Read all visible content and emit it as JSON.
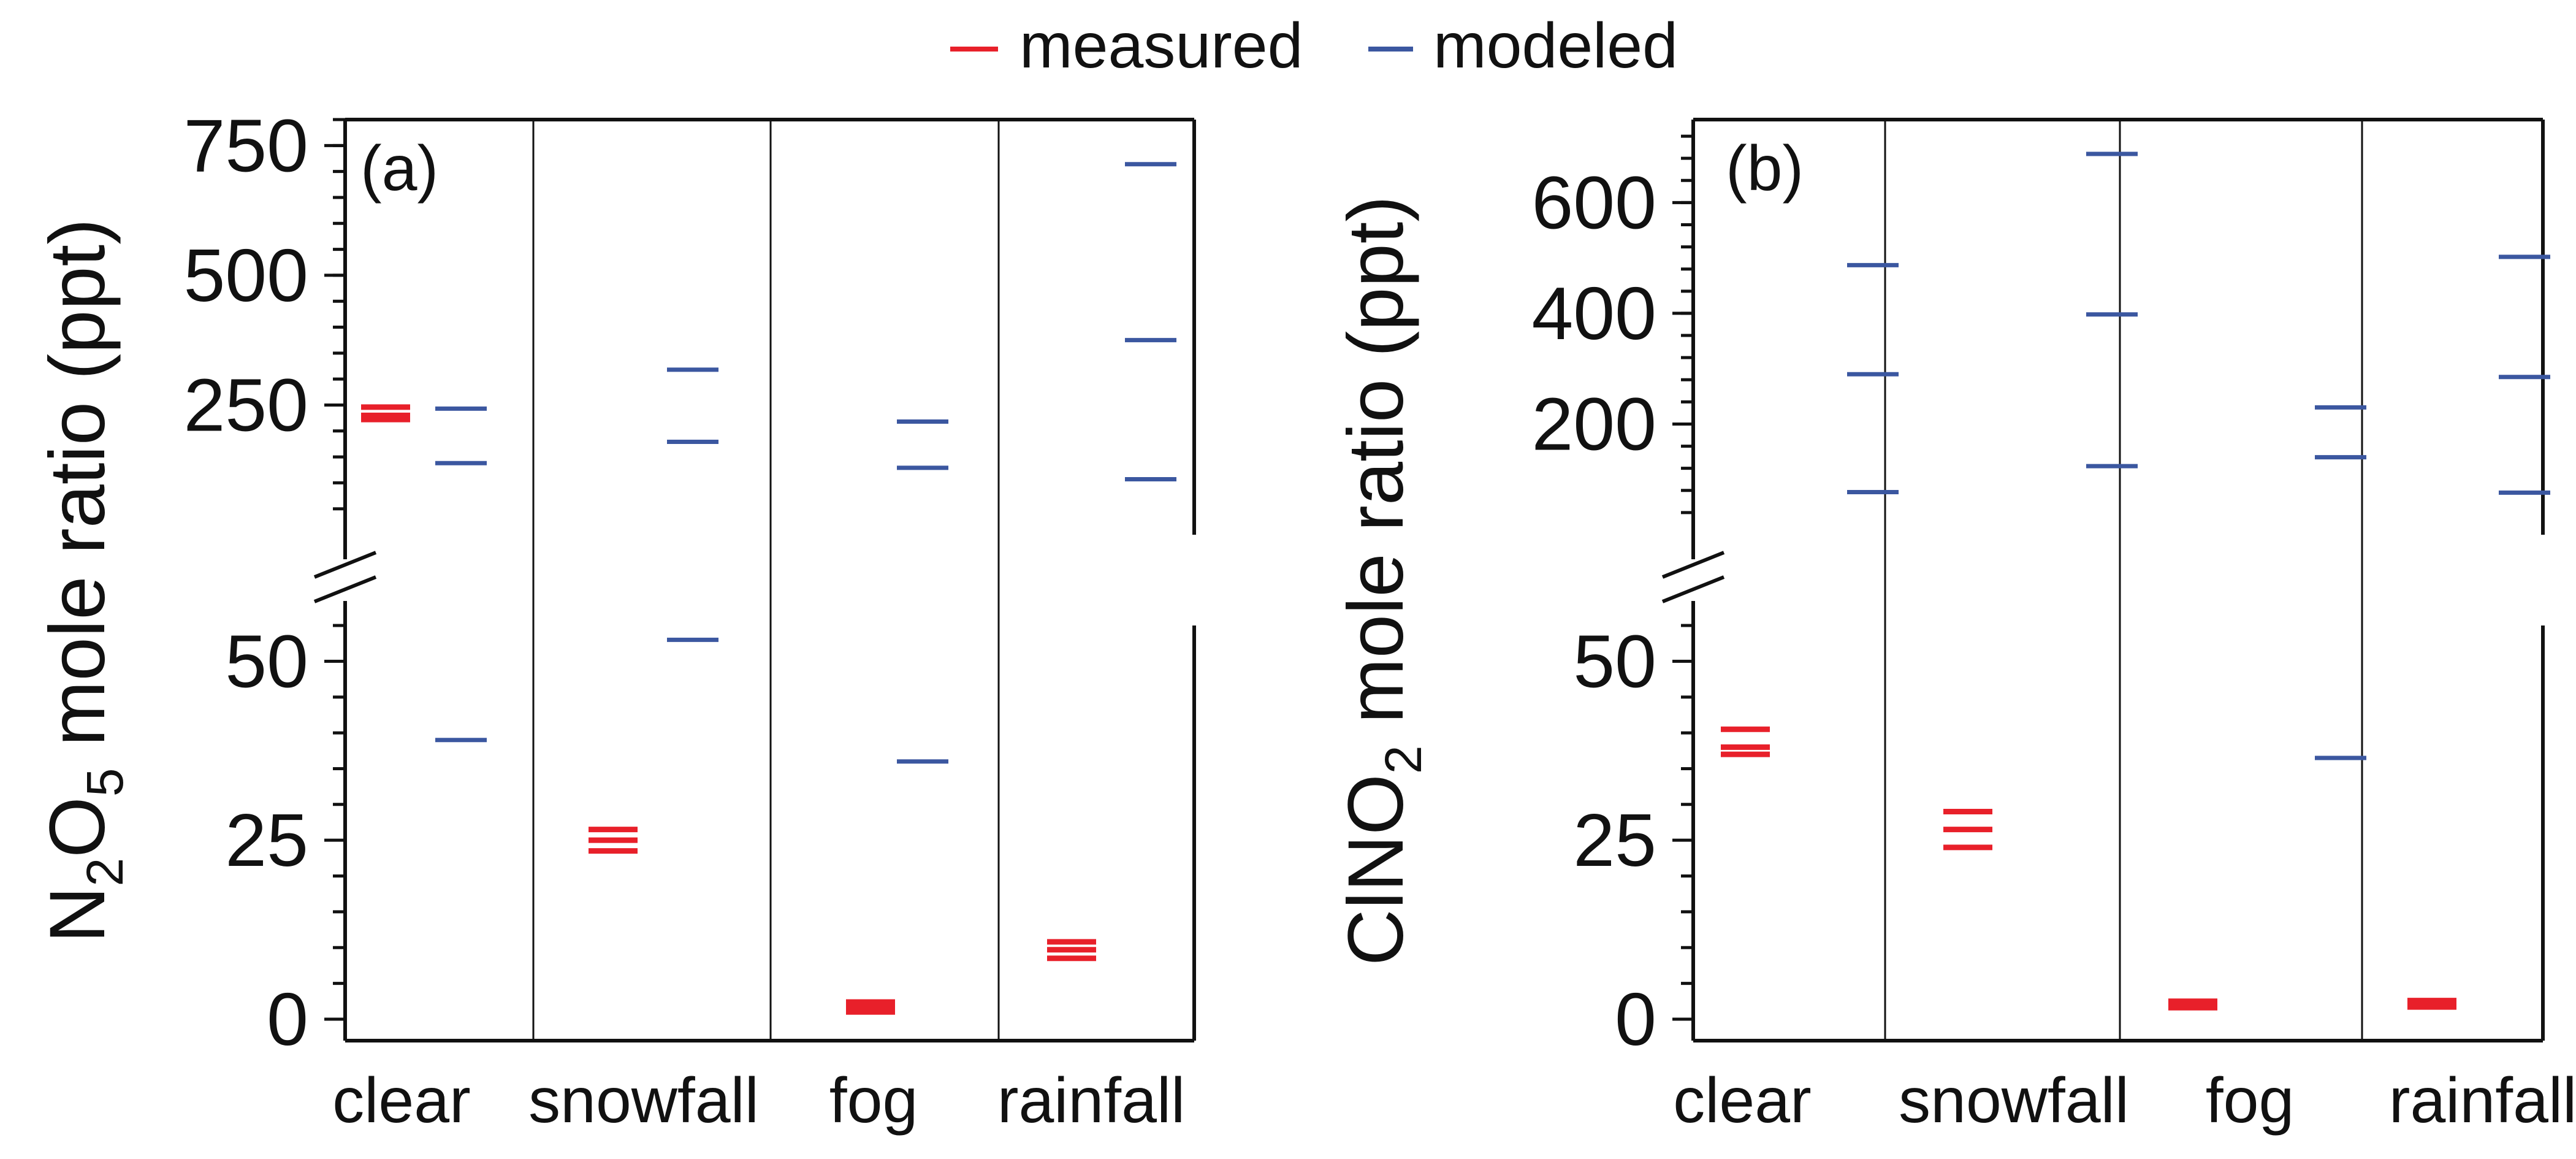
{
  "legend": {
    "items": [
      {
        "label": "measured",
        "color": "#e8202a"
      },
      {
        "label": "modeled",
        "color": "#3b57a0"
      }
    ],
    "placement": "top-center"
  },
  "chart_data": [
    {
      "panel_label": "(a)",
      "type": "scatter",
      "marker": "horizontal-dash",
      "ylabel_parts": [
        "N",
        "2",
        "O",
        "5",
        " mole ratio (ppt)"
      ],
      "categories": [
        "clear",
        "snowfall",
        "fog",
        "rainfall"
      ],
      "y_axis": {
        "broken": true,
        "lower": {
          "range": [
            -3,
            55
          ],
          "ticks": [
            "0",
            "25",
            "50"
          ],
          "minor_step": 5
        },
        "upper": {
          "range": [
            0,
            800
          ],
          "ticks": [
            "250",
            "500",
            "750"
          ],
          "minor_step": 50
        }
      },
      "series": [
        {
          "name": "measured",
          "color": "#e8202a",
          "values": [
            [
              246,
              230,
              222
            ],
            [
              26.5,
              25,
              23.5
            ],
            [
              2.4,
              1.7,
              1.0
            ],
            [
              10.8,
              9.7,
              8.5
            ]
          ]
        },
        {
          "name": "modeled",
          "color": "#3b57a0",
          "values": [
            [
              243,
              138,
              39
            ],
            [
              318,
              179,
              53
            ],
            [
              218,
              129,
              36
            ],
            [
              714,
              375,
              107
            ]
          ]
        }
      ]
    },
    {
      "panel_label": "(b)",
      "type": "scatter",
      "marker": "horizontal-dash",
      "ylabel_parts": [
        "ClNO",
        "2",
        " mole ratio (ppt)"
      ],
      "categories": [
        "clear",
        "snowfall",
        "fog",
        "rainfall"
      ],
      "y_axis": {
        "broken": true,
        "lower": {
          "range": [
            -3,
            55
          ],
          "ticks": [
            "0",
            "25",
            "50"
          ],
          "minor_step": 5
        },
        "upper": {
          "range": [
            0,
            750
          ],
          "ticks": [
            "200",
            "400",
            "600"
          ],
          "minor_step": 40
        }
      },
      "series": [
        {
          "name": "measured",
          "color": "#e8202a",
          "values": [
            [
              40.5,
              38,
              37
            ],
            [
              29,
              26.5,
              24
            ],
            [
              2.5,
              2.0,
              1.6
            ],
            [
              2.6,
              2.2,
              1.7
            ]
          ]
        },
        {
          "name": "modeled",
          "color": "#3b57a0",
          "values": [
            [
              487,
              290,
              77
            ],
            [
              688,
              398,
              124
            ],
            [
              230,
              140,
              36.5
            ],
            [
              502,
              285,
              76
            ]
          ]
        }
      ]
    }
  ]
}
